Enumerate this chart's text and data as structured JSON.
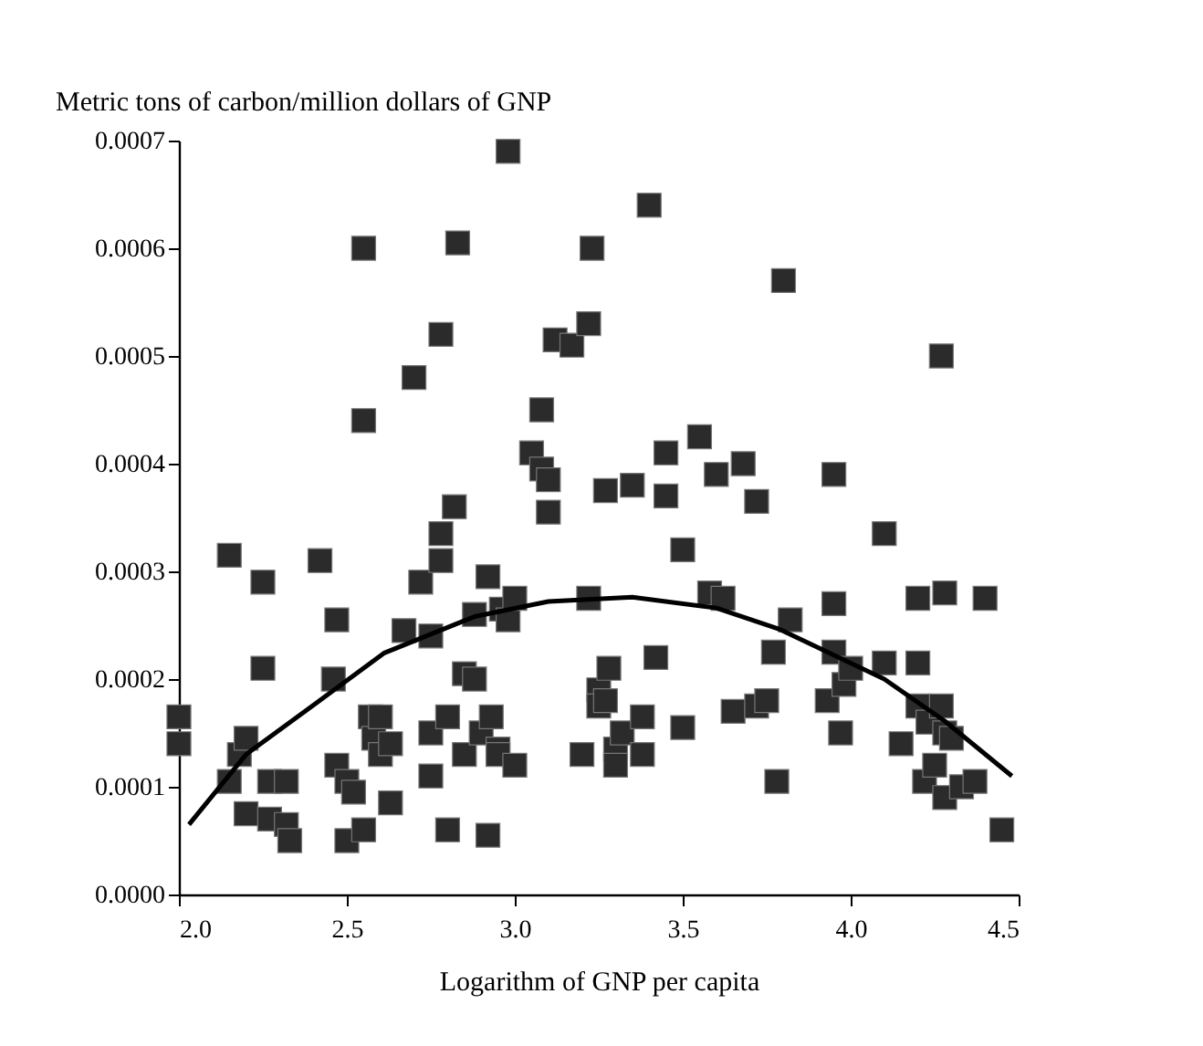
{
  "chart_data": {
    "type": "scatter",
    "xlabel": "Logarithm of GNP per capita",
    "ylabel": "Metric tons of carbon/million dollars of GNP",
    "xlim": [
      2.0,
      4.5
    ],
    "ylim": [
      0,
      0.0007
    ],
    "xticks": [
      {
        "value": 2.0,
        "label": "2.0"
      },
      2.5,
      {
        "value": 3.0,
        "label": "3.0"
      },
      3.5,
      {
        "value": 4.0,
        "label": "4.0"
      },
      4.5
    ],
    "yticks": [
      {
        "value": 0,
        "label": "0.0000"
      },
      {
        "value": 0.0001,
        "label": "0.0001"
      },
      {
        "value": 0.0002,
        "label": "0.0002"
      },
      {
        "value": 0.0003,
        "label": "0.0003"
      },
      {
        "value": 0.0004,
        "label": "0.0004"
      },
      {
        "value": 0.0005,
        "label": "0.0005"
      },
      {
        "value": 0.0006,
        "label": "0.0006"
      },
      {
        "value": 0.0007,
        "label": "0.0007"
      }
    ],
    "grid": false,
    "series": [
      {
        "color": "#2b2b2b",
        "marker": "square",
        "x": [
          2.0,
          2.0,
          2.15,
          2.15,
          2.18,
          2.2,
          2.2,
          2.25,
          2.25,
          2.27,
          2.27,
          2.32,
          2.32,
          2.33,
          2.42,
          2.47,
          2.46,
          2.47,
          2.5,
          2.5,
          2.52,
          2.55,
          2.55,
          2.55,
          2.57,
          2.58,
          2.6,
          2.6,
          2.63,
          2.63,
          2.67,
          2.7,
          2.72,
          2.75,
          2.75,
          2.75,
          2.78,
          2.78,
          2.78,
          2.8,
          2.8,
          2.82,
          2.83,
          2.85,
          2.85,
          2.88,
          2.88,
          2.9,
          2.92,
          2.92,
          2.93,
          2.95,
          2.95,
          2.96,
          2.98,
          2.98,
          3.0,
          3.0,
          3.05,
          3.08,
          3.08,
          3.1,
          3.1,
          3.12,
          3.17,
          3.2,
          3.22,
          3.22,
          3.23,
          3.25,
          3.25,
          3.27,
          3.27,
          3.28,
          3.3,
          3.3,
          3.32,
          3.35,
          3.38,
          3.38,
          3.4,
          3.42,
          3.45,
          3.45,
          3.5,
          3.5,
          3.55,
          3.58,
          3.6,
          3.62,
          3.65,
          3.68,
          3.72,
          3.72,
          3.75,
          3.77,
          3.78,
          3.8,
          3.82,
          3.93,
          3.95,
          3.95,
          3.95,
          3.97,
          3.98,
          4.0,
          4.1,
          4.1,
          4.15,
          4.2,
          4.2,
          4.2,
          4.22,
          4.23,
          4.25,
          4.27,
          4.28,
          4.27,
          4.28,
          4.28,
          4.3,
          4.33,
          4.37,
          4.4,
          4.45
        ],
        "values": [
          0.000165,
          0.00014,
          0.000315,
          0.000105,
          0.00013,
          0.000145,
          7.5e-05,
          0.00029,
          0.00021,
          0.000105,
          7e-05,
          0.000105,
          6.5e-05,
          5e-05,
          0.00031,
          0.000255,
          0.0002,
          0.00012,
          0.000105,
          5e-05,
          9.5e-05,
          6e-05,
          0.00044,
          0.0006,
          0.000165,
          0.000145,
          0.000165,
          0.00013,
          0.00014,
          8.5e-05,
          0.000245,
          0.00048,
          0.00029,
          0.00024,
          0.00015,
          0.00011,
          0.00052,
          0.000335,
          0.00031,
          6e-05,
          0.000165,
          0.00036,
          0.000605,
          0.000205,
          0.00013,
          0.0002,
          0.00026,
          0.00015,
          0.000295,
          5.5e-05,
          0.000165,
          0.000135,
          0.00013,
          0.000265,
          0.00069,
          0.000255,
          0.000275,
          0.00012,
          0.00041,
          0.00045,
          0.000395,
          0.000385,
          0.000355,
          0.000515,
          0.00051,
          0.00013,
          0.000275,
          0.00053,
          0.0006,
          0.00019,
          0.000175,
          0.00018,
          0.000375,
          0.00021,
          0.000135,
          0.00012,
          0.00015,
          0.00038,
          0.000165,
          0.00013,
          0.00064,
          0.00022,
          0.00041,
          0.00037,
          0.000155,
          0.00032,
          0.000425,
          0.00028,
          0.00039,
          0.000275,
          0.00017,
          0.0004,
          0.000175,
          0.000365,
          0.00018,
          0.000225,
          0.000105,
          0.00057,
          0.000255,
          0.00018,
          0.00039,
          0.000225,
          0.00027,
          0.00015,
          0.000195,
          0.00021,
          0.000335,
          0.000215,
          0.00014,
          0.000175,
          0.000215,
          0.000275,
          0.000105,
          0.00016,
          0.00012,
          0.000175,
          0.00015,
          0.0005,
          0.00028,
          9e-05,
          0.000145,
          0.0001,
          0.000105,
          0.000275,
          6e-05
        ]
      },
      {
        "type": "line",
        "color": "#000000",
        "marker": "none",
        "line_style": "solid",
        "x": [
          2.03,
          2.2,
          2.41,
          2.61,
          2.88,
          3.1,
          3.35,
          3.6,
          3.79,
          4.1,
          4.28,
          4.48
        ],
        "values": [
          6.5e-05,
          0.00013,
          0.000178,
          0.000224,
          0.000258,
          0.000272,
          0.000276,
          0.000266,
          0.000246,
          0.0002,
          0.000161,
          0.00011
        ]
      }
    ]
  }
}
